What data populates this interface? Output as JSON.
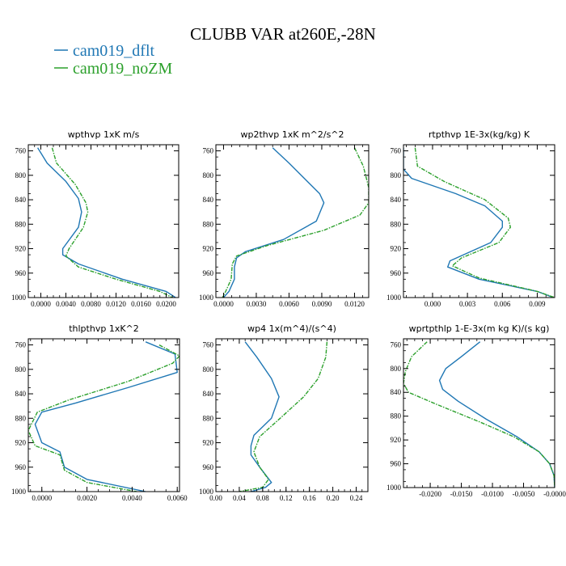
{
  "figure": {
    "title": "CLUBB VAR at260E,-28N",
    "legend": [
      {
        "label": "cam019_dflt",
        "color": "#1f77b4",
        "dash": "solid"
      },
      {
        "label": "cam019_noZM",
        "color": "#2ca02c",
        "dash": "dashed"
      }
    ]
  },
  "chart_data": [
    {
      "type": "line",
      "title": "wpthvp  1xK m/s",
      "xlim": [
        -0.002,
        0.022
      ],
      "ylim": [
        1000,
        750
      ],
      "y_reversed": true,
      "xticks": [
        0.0,
        0.004,
        0.008,
        0.012,
        0.016,
        0.02
      ],
      "xtick_labels": [
        "0.0000",
        "0.0040",
        "0.0080",
        "0.0120",
        "0.0160",
        "0.0200"
      ],
      "yticks": [
        760,
        800,
        840,
        880,
        920,
        960,
        1000
      ],
      "series": [
        {
          "name": "cam019_dflt",
          "points": [
            [
              -0.0005,
              755
            ],
            [
              0.001,
              780
            ],
            [
              0.004,
              810
            ],
            [
              0.006,
              838
            ],
            [
              0.0065,
              860
            ],
            [
              0.006,
              885
            ],
            [
              0.0035,
              920
            ],
            [
              0.0035,
              930
            ],
            [
              0.006,
              945
            ],
            [
              0.013,
              970
            ],
            [
              0.02,
              990
            ],
            [
              0.0215,
              1000
            ]
          ]
        },
        {
          "name": "cam019_noZM",
          "points": [
            [
              0.0018,
              755
            ],
            [
              0.0025,
              780
            ],
            [
              0.0055,
              815
            ],
            [
              0.0072,
              845
            ],
            [
              0.0075,
              860
            ],
            [
              0.0068,
              885
            ],
            [
              0.0045,
              920
            ],
            [
              0.004,
              932
            ],
            [
              0.006,
              950
            ],
            [
              0.012,
              970
            ],
            [
              0.019,
              990
            ],
            [
              0.021,
              1000
            ]
          ]
        }
      ]
    },
    {
      "type": "line",
      "title": "wp2thvp  1xK m^2/s^2",
      "xlim": [
        -0.0007,
        0.0133
      ],
      "ylim": [
        1000,
        750
      ],
      "y_reversed": true,
      "xticks": [
        0.0,
        0.003,
        0.006,
        0.009,
        0.012
      ],
      "xtick_labels": [
        "0.0000",
        "0.0030",
        "0.0060",
        "0.0090",
        "0.0120"
      ],
      "yticks": [
        760,
        800,
        840,
        880,
        920,
        960,
        1000
      ],
      "series": [
        {
          "name": "cam019_dflt",
          "points": [
            [
              0.0045,
              755
            ],
            [
              0.006,
              780
            ],
            [
              0.0088,
              830
            ],
            [
              0.0092,
              845
            ],
            [
              0.0085,
              875
            ],
            [
              0.0055,
              905
            ],
            [
              0.002,
              925
            ],
            [
              0.0012,
              935
            ],
            [
              0.001,
              950
            ],
            [
              0.001,
              970
            ],
            [
              0.0005,
              990
            ],
            [
              0.0,
              1000
            ]
          ]
        },
        {
          "name": "cam019_noZM",
          "points": [
            [
              0.012,
              755
            ],
            [
              0.0128,
              785
            ],
            [
              0.0133,
              820
            ],
            [
              0.0133,
              845
            ],
            [
              0.0125,
              865
            ],
            [
              0.0092,
              890
            ],
            [
              0.004,
              915
            ],
            [
              0.0012,
              932
            ],
            [
              0.0008,
              945
            ],
            [
              0.0007,
              970
            ],
            [
              0.0002,
              990
            ],
            [
              -0.0001,
              1000
            ]
          ]
        }
      ]
    },
    {
      "type": "line",
      "title": "rtpthvp  1E-3x(kg/kg) K",
      "xlim": [
        -0.0025,
        0.0105
      ],
      "ylim": [
        1000,
        750
      ],
      "y_reversed": true,
      "xticks": [
        0.0,
        0.003,
        0.006,
        0.009
      ],
      "xtick_labels": [
        "0.000",
        "0.003",
        "0.006",
        "0.009"
      ],
      "yticks": [
        760,
        800,
        840,
        880,
        920,
        960,
        1000
      ],
      "series": [
        {
          "name": "cam019_dflt",
          "points": [
            [
              -0.0025,
              755
            ],
            [
              -0.0025,
              790
            ],
            [
              -0.0018,
              805
            ],
            [
              0.002,
              830
            ],
            [
              0.0045,
              850
            ],
            [
              0.006,
              875
            ],
            [
              0.006,
              885
            ],
            [
              0.005,
              910
            ],
            [
              0.0015,
              940
            ],
            [
              0.0013,
              950
            ],
            [
              0.004,
              970
            ],
            [
              0.009,
              990
            ],
            [
              0.0104,
              1000
            ]
          ]
        },
        {
          "name": "cam019_noZM",
          "points": [
            [
              -0.0015,
              755
            ],
            [
              -0.0013,
              785
            ],
            [
              0.001,
              810
            ],
            [
              0.0045,
              840
            ],
            [
              0.0065,
              870
            ],
            [
              0.0067,
              885
            ],
            [
              0.0057,
              910
            ],
            [
              0.0025,
              935
            ],
            [
              0.0017,
              948
            ],
            [
              0.004,
              968
            ],
            [
              0.009,
              990
            ],
            [
              0.0105,
              1000
            ]
          ]
        }
      ]
    },
    {
      "type": "line",
      "title": "thlpthvp  1xK^2",
      "xlim": [
        -0.0006,
        0.0061
      ],
      "ylim": [
        1000,
        750
      ],
      "y_reversed": true,
      "xticks": [
        0.0,
        0.002,
        0.004,
        0.006
      ],
      "xtick_labels": [
        "0.0000",
        "0.0020",
        "0.0040",
        "0.0060"
      ],
      "yticks": [
        760,
        800,
        840,
        880,
        920,
        960,
        1000
      ],
      "series": [
        {
          "name": "cam019_dflt",
          "points": [
            [
              0.0046,
              755
            ],
            [
              0.0059,
              775
            ],
            [
              0.006,
              805
            ],
            [
              0.0038,
              830
            ],
            [
              0.0015,
              855
            ],
            [
              0.0,
              870
            ],
            [
              -0.0003,
              890
            ],
            [
              0.0,
              920
            ],
            [
              0.0008,
              935
            ],
            [
              0.001,
              960
            ],
            [
              0.002,
              980
            ],
            [
              0.0046,
              1000
            ]
          ]
        },
        {
          "name": "cam019_noZM",
          "points": [
            [
              0.0052,
              760
            ],
            [
              0.0061,
              778
            ],
            [
              0.0058,
              790
            ],
            [
              0.0038,
              820
            ],
            [
              0.0012,
              850
            ],
            [
              -0.0002,
              870
            ],
            [
              -0.0006,
              900
            ],
            [
              -0.0003,
              925
            ],
            [
              0.0008,
              940
            ],
            [
              0.001,
              965
            ],
            [
              0.002,
              985
            ],
            [
              0.0042,
              1000
            ]
          ]
        }
      ]
    },
    {
      "type": "line",
      "title": "wp4  1x(m^4)/(s^4)",
      "xlim": [
        0.0,
        0.26
      ],
      "ylim": [
        1000,
        750
      ],
      "y_reversed": true,
      "xticks": [
        0.0,
        0.04,
        0.08,
        0.12,
        0.16,
        0.2,
        0.24
      ],
      "xtick_labels": [
        "0.00",
        "0.04",
        "0.08",
        "0.12",
        "0.16",
        "0.20",
        "0.24"
      ],
      "yticks": [
        760,
        800,
        840,
        880,
        920,
        960,
        1000
      ],
      "series": [
        {
          "name": "cam019_dflt",
          "points": [
            [
              0.05,
              755
            ],
            [
              0.07,
              780
            ],
            [
              0.095,
              815
            ],
            [
              0.108,
              845
            ],
            [
              0.095,
              880
            ],
            [
              0.065,
              908
            ],
            [
              0.06,
              925
            ],
            [
              0.06,
              940
            ],
            [
              0.075,
              960
            ],
            [
              0.095,
              985
            ],
            [
              0.085,
              993
            ],
            [
              0.06,
              1000
            ]
          ]
        },
        {
          "name": "cam019_noZM",
          "points": [
            [
              0.19,
              755
            ],
            [
              0.188,
              780
            ],
            [
              0.175,
              815
            ],
            [
              0.15,
              845
            ],
            [
              0.11,
              880
            ],
            [
              0.075,
              910
            ],
            [
              0.065,
              935
            ],
            [
              0.075,
              960
            ],
            [
              0.09,
              980
            ],
            [
              0.08,
              993
            ],
            [
              0.04,
              1000
            ]
          ]
        }
      ]
    },
    {
      "type": "line",
      "title": "wprtpthlp  1-E-3x(m kg K)/(s kg)",
      "xlim": [
        -0.0243,
        0.0
      ],
      "ylim": [
        1000,
        750
      ],
      "y_reversed": true,
      "xticks": [
        -0.02,
        -0.015,
        -0.01,
        -0.005,
        0.0
      ],
      "xtick_labels": [
        "-0.0200",
        "-0.0150",
        "-0.0100",
        "-0.0050",
        "-0.0000"
      ],
      "yticks": [
        760,
        800,
        840,
        880,
        920,
        960,
        1000
      ],
      "series": [
        {
          "name": "cam019_dflt",
          "points": [
            [
              -0.012,
              755
            ],
            [
              -0.015,
              780
            ],
            [
              -0.0175,
              800
            ],
            [
              -0.0185,
              820
            ],
            [
              -0.018,
              835
            ],
            [
              -0.0155,
              855
            ],
            [
              -0.011,
              885
            ],
            [
              -0.006,
              915
            ],
            [
              -0.0025,
              940
            ],
            [
              -0.0008,
              960
            ],
            [
              -0.0001,
              980
            ],
            [
              0.0,
              1000
            ]
          ]
        },
        {
          "name": "cam019_noZM",
          "points": [
            [
              -0.0205,
              755
            ],
            [
              -0.023,
              780
            ],
            [
              -0.024,
              805
            ],
            [
              -0.0243,
              825
            ],
            [
              -0.0235,
              840
            ],
            [
              -0.019,
              860
            ],
            [
              -0.012,
              890
            ],
            [
              -0.0065,
              915
            ],
            [
              -0.0025,
              940
            ],
            [
              -0.0008,
              960
            ],
            [
              -0.0001,
              980
            ],
            [
              0.0,
              1000
            ]
          ]
        }
      ]
    }
  ]
}
